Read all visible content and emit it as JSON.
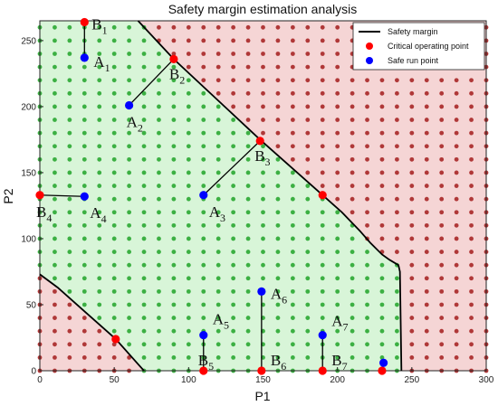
{
  "chart_data": {
    "type": "scatter",
    "title": "Safety margin estimation analysis",
    "xlabel": "P1",
    "ylabel": "P2",
    "xlim": [
      0,
      300
    ],
    "ylim": [
      0,
      265
    ],
    "xticks": [
      0,
      50,
      100,
      150,
      200,
      250,
      300
    ],
    "yticks": [
      0,
      50,
      100,
      150,
      200,
      250
    ],
    "grid_step": 10,
    "legend_position": "top-right",
    "legend": [
      {
        "label": "Safety margin",
        "kind": "line",
        "color": "#000000"
      },
      {
        "label": "Critical operating point",
        "kind": "dot",
        "color": "#ff0000"
      },
      {
        "label": "Safe run point",
        "kind": "dot",
        "color": "#0000ff"
      }
    ],
    "colors": {
      "safe_grid": "#3cb043",
      "unsafe_grid": "#b03838",
      "safe_region": "#d8f5d8",
      "unsafe_region": "#f5d5d5",
      "critical": "#ff0000",
      "safe_point": "#0000ff"
    },
    "safety_margin": {
      "upper": [
        [
          66,
          265
        ],
        [
          90,
          236
        ],
        [
          148,
          175
        ],
        [
          191,
          132
        ],
        [
          203,
          120
        ],
        [
          215,
          106
        ],
        [
          222,
          97
        ],
        [
          230,
          88
        ],
        [
          235,
          84
        ],
        [
          241,
          80
        ],
        [
          242,
          75
        ],
        [
          243,
          0
        ]
      ],
      "lower": [
        [
          0,
          73
        ],
        [
          12,
          63
        ],
        [
          30,
          45
        ],
        [
          51,
          24
        ],
        [
          66,
          5
        ],
        [
          70,
          0
        ]
      ]
    },
    "critical_points": [
      {
        "label": "B",
        "sub": "1",
        "x": 30,
        "y": 264
      },
      {
        "label": "B",
        "sub": "2",
        "x": 90,
        "y": 236
      },
      {
        "label": "B",
        "sub": "3",
        "x": 148,
        "y": 174
      },
      {
        "label": "B",
        "sub": "4",
        "x": 0,
        "y": 133
      },
      {
        "label": "B",
        "sub": "5",
        "x": 110,
        "y": 0
      },
      {
        "label": "B",
        "sub": "6",
        "x": 149,
        "y": 0
      },
      {
        "label": "B",
        "sub": "7",
        "x": 190,
        "y": 0
      },
      {
        "label": "",
        "sub": "",
        "x": 190,
        "y": 133
      },
      {
        "label": "",
        "sub": "",
        "x": 51,
        "y": 24
      },
      {
        "label": "",
        "sub": "",
        "x": 230,
        "y": 0
      }
    ],
    "safe_points": [
      {
        "label": "A",
        "sub": "1",
        "x": 30,
        "y": 237
      },
      {
        "label": "A",
        "sub": "2",
        "x": 60,
        "y": 201
      },
      {
        "label": "A",
        "sub": "3",
        "x": 110,
        "y": 133
      },
      {
        "label": "A",
        "sub": "4",
        "x": 30,
        "y": 132
      },
      {
        "label": "A",
        "sub": "5",
        "x": 110,
        "y": 27
      },
      {
        "label": "A",
        "sub": "6",
        "x": 149,
        "y": 60
      },
      {
        "label": "A",
        "sub": "7",
        "x": 190,
        "y": 27
      },
      {
        "label": "",
        "sub": "",
        "x": 231,
        "y": 6
      }
    ],
    "connectors": [
      [
        [
          30,
          264
        ],
        [
          30,
          237
        ]
      ],
      [
        [
          90,
          236
        ],
        [
          60,
          201
        ]
      ],
      [
        [
          148,
          174
        ],
        [
          110,
          133
        ]
      ],
      [
        [
          0,
          133
        ],
        [
          30,
          132
        ]
      ],
      [
        [
          110,
          0
        ],
        [
          110,
          27
        ]
      ],
      [
        [
          149,
          0
        ],
        [
          149,
          60
        ]
      ],
      [
        [
          190,
          0
        ],
        [
          190,
          27
        ]
      ]
    ]
  }
}
